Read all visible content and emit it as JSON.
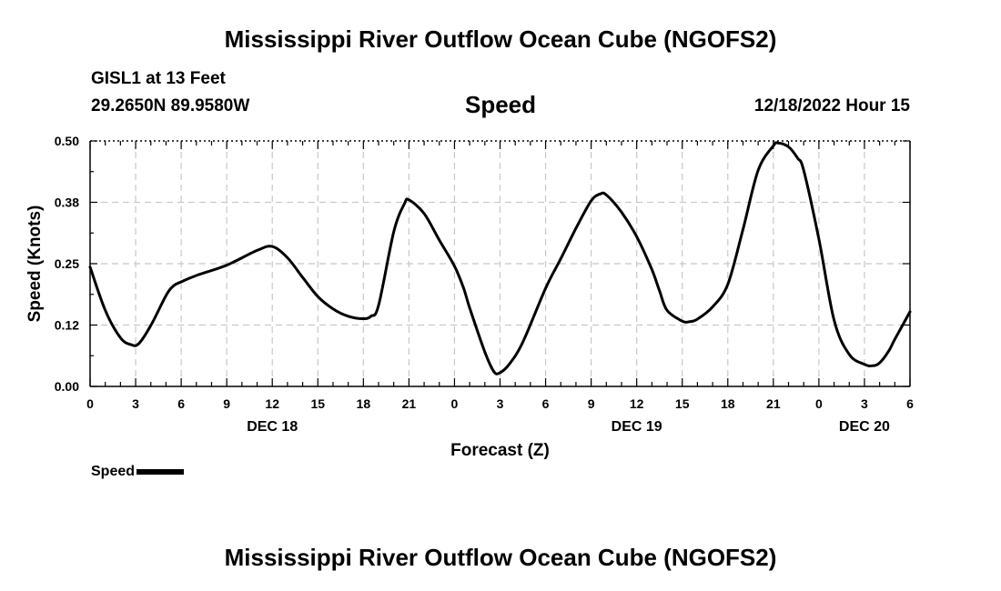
{
  "header": {
    "title": "Mississippi River Outflow Ocean Cube (NGOFS2)",
    "station": "GISL1 at 13 Feet",
    "coords": "29.2650N  89.9580W",
    "variable": "Speed",
    "datetime": "12/18/2022 Hour 15"
  },
  "footer": {
    "title": "Mississippi River Outflow Ocean Cube (NGOFS2)"
  },
  "legend": {
    "label": "Speed"
  },
  "chart_data": {
    "type": "line",
    "title": "Speed",
    "xlabel": "Forecast (Z)",
    "ylabel": "Speed (Knots)",
    "xlim": [
      0,
      54
    ],
    "ylim": [
      0,
      0.5
    ],
    "yticks": [
      0.0,
      0.125,
      0.25,
      0.375,
      0.5
    ],
    "ytick_labels": [
      "0.00",
      "0.12",
      "0.25",
      "0.38",
      "0.50"
    ],
    "xticks": [
      0,
      3,
      6,
      9,
      12,
      15,
      18,
      21,
      24,
      27,
      30,
      33,
      36,
      39,
      42,
      45,
      48,
      51,
      54
    ],
    "xtick_labels": [
      "0",
      "3",
      "6",
      "9",
      "12",
      "15",
      "18",
      "21",
      "0",
      "3",
      "6",
      "9",
      "12",
      "15",
      "18",
      "21",
      "0",
      "3",
      "6"
    ],
    "day_labels": [
      {
        "x": 12,
        "label": "DEC 18"
      },
      {
        "x": 36,
        "label": "DEC 19"
      },
      {
        "x": 51,
        "label": "DEC 20"
      }
    ],
    "grid": true,
    "series": [
      {
        "name": "Speed",
        "color": "#000000",
        "x": [
          0,
          1,
          2,
          2.7,
          3.2,
          4,
          5,
          5.5,
          6,
          7,
          9,
          11,
          12,
          13,
          14,
          15,
          16,
          17,
          18,
          18.5,
          19,
          20,
          20.7,
          21,
          22,
          23,
          24,
          24.6,
          25,
          26,
          26.6,
          27,
          27.6,
          28.5,
          30,
          31,
          32,
          33,
          33.6,
          34,
          35,
          36,
          37,
          37.5,
          38,
          39,
          39.5,
          40,
          41,
          42,
          43,
          44,
          45,
          45.3,
          46,
          46.6,
          47,
          48,
          49,
          50,
          51,
          51.5,
          52,
          52.6,
          53,
          54
        ],
        "y": [
          0.243,
          0.155,
          0.099,
          0.085,
          0.087,
          0.124,
          0.185,
          0.205,
          0.213,
          0.226,
          0.247,
          0.277,
          0.285,
          0.262,
          0.222,
          0.183,
          0.158,
          0.143,
          0.138,
          0.143,
          0.165,
          0.315,
          0.372,
          0.38,
          0.352,
          0.298,
          0.245,
          0.2,
          0.16,
          0.07,
          0.03,
          0.028,
          0.045,
          0.09,
          0.2,
          0.26,
          0.322,
          0.378,
          0.392,
          0.39,
          0.355,
          0.305,
          0.238,
          0.195,
          0.155,
          0.133,
          0.132,
          0.137,
          0.162,
          0.208,
          0.32,
          0.44,
          0.49,
          0.496,
          0.488,
          0.465,
          0.44,
          0.3,
          0.135,
          0.065,
          0.045,
          0.042,
          0.048,
          0.072,
          0.096,
          0.152
        ]
      }
    ]
  }
}
